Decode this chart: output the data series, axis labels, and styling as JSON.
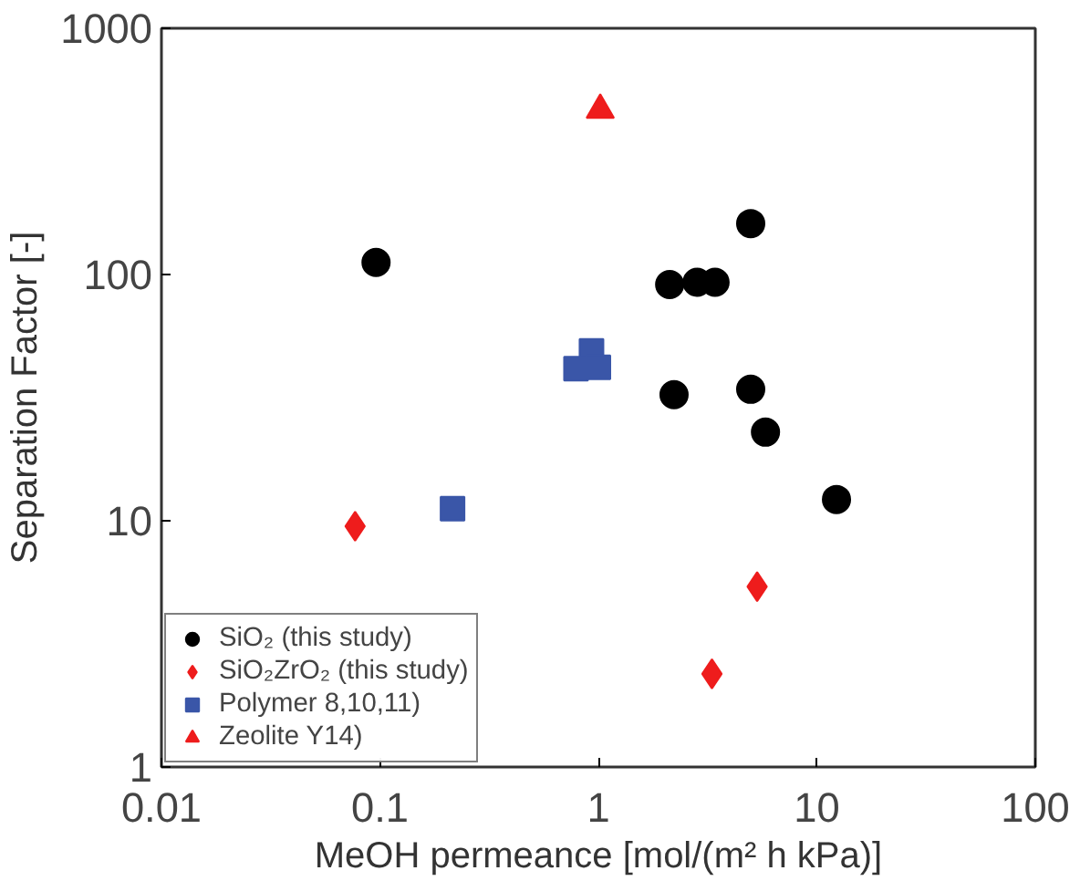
{
  "chart_data": {
    "type": "scatter",
    "xlabel": "MeOH permeance [mol/(m² h kPa)]",
    "ylabel": "Separation Factor [-]",
    "log": "xy",
    "xlim": [
      0.01,
      100
    ],
    "ylim": [
      1,
      1000
    ],
    "xticks": [
      0.01,
      0.1,
      1,
      10,
      100
    ],
    "yticks": [
      1,
      10,
      100,
      1000
    ],
    "grid": false,
    "legend": "bottom left",
    "series": [
      {
        "name": "SiO₂ (this study)",
        "color": "#000000",
        "marker": "circle",
        "x": [
          0.096,
          4.98,
          2.12,
          2.83,
          3.42,
          2.22,
          4.98,
          5.82,
          12.3
        ],
        "values": [
          112,
          161,
          91,
          93,
          93,
          32.5,
          34.2,
          22.9,
          12.2
        ]
      },
      {
        "name": "SiO₂ZrO₂ (this study)",
        "color": "#ee1c1c",
        "marker": "diamond",
        "x": [
          0.077,
          5.33,
          3.31
        ],
        "values": [
          9.5,
          5.4,
          2.39
        ]
      },
      {
        "name": "Polymer 8,10,11)",
        "color": "#3a56a8",
        "marker": "square",
        "x": [
          0.215,
          0.93,
          0.79,
          1.0
        ],
        "values": [
          11.2,
          49,
          41.5,
          42
        ]
      },
      {
        "name": "Zeolite Y14)",
        "color": "#ee1c1c",
        "marker": "triangle",
        "x": [
          1.02
        ],
        "values": [
          466
        ]
      }
    ]
  }
}
